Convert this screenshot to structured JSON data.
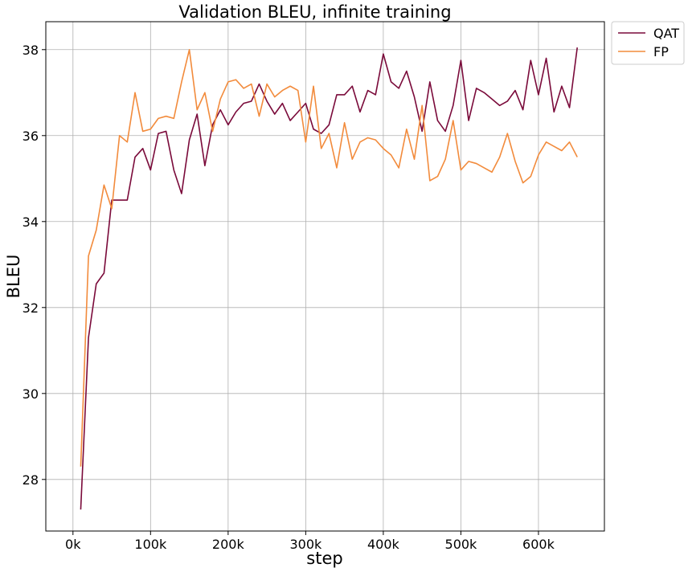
{
  "chart_data": {
    "type": "line",
    "title": "Validation BLEU, infinite training",
    "xlabel": "step",
    "ylabel": "BLEU",
    "xlim": [
      -35000,
      685000
    ],
    "ylim": [
      26.8,
      38.65
    ],
    "xticks": [
      0,
      100000,
      200000,
      300000,
      400000,
      500000,
      600000
    ],
    "xtick_labels": [
      "0k",
      "100k",
      "200k",
      "300k",
      "400k",
      "500k",
      "600k"
    ],
    "yticks": [
      28,
      30,
      32,
      34,
      36,
      38
    ],
    "ytick_labels": [
      "28",
      "30",
      "32",
      "34",
      "36",
      "38"
    ],
    "grid": true,
    "legend_position": "outside top-right",
    "x": [
      10000,
      20000,
      30000,
      40000,
      50000,
      60000,
      70000,
      80000,
      90000,
      100000,
      110000,
      120000,
      130000,
      140000,
      150000,
      160000,
      170000,
      180000,
      190000,
      200000,
      210000,
      220000,
      230000,
      240000,
      250000,
      260000,
      270000,
      280000,
      290000,
      300000,
      310000,
      320000,
      330000,
      340000,
      350000,
      360000,
      370000,
      380000,
      390000,
      400000,
      410000,
      420000,
      430000,
      440000,
      450000,
      460000,
      470000,
      480000,
      490000,
      500000,
      510000,
      520000,
      530000,
      540000,
      550000,
      560000,
      570000,
      580000,
      590000,
      600000,
      610000,
      620000,
      630000,
      640000,
      650000
    ],
    "series": [
      {
        "name": "QAT",
        "color": "#7a0a3a",
        "values": [
          27.3,
          31.3,
          32.55,
          32.8,
          34.5,
          34.5,
          34.5,
          35.5,
          35.7,
          35.2,
          36.05,
          36.1,
          35.2,
          34.65,
          35.9,
          36.5,
          35.3,
          36.25,
          36.6,
          36.25,
          36.55,
          36.75,
          36.8,
          37.2,
          36.8,
          36.5,
          36.75,
          36.35,
          36.55,
          36.75,
          36.15,
          36.05,
          36.25,
          36.95,
          36.95,
          37.15,
          36.55,
          37.05,
          36.95,
          37.9,
          37.25,
          37.1,
          37.5,
          36.9,
          36.1,
          37.25,
          36.35,
          36.1,
          36.7,
          37.75,
          36.35,
          37.1,
          37.0,
          36.85,
          36.7,
          36.8,
          37.05,
          36.6,
          37.75,
          36.95,
          37.8,
          36.55,
          37.15,
          36.65,
          38.05
        ]
      },
      {
        "name": "FP",
        "color": "#f28b3c",
        "values": [
          28.3,
          33.2,
          33.8,
          34.85,
          34.3,
          36.0,
          35.85,
          37.0,
          36.1,
          36.15,
          36.4,
          36.45,
          36.4,
          37.25,
          38.0,
          36.6,
          37.0,
          36.1,
          36.85,
          37.25,
          37.3,
          37.1,
          37.2,
          36.45,
          37.2,
          36.9,
          37.05,
          37.15,
          37.05,
          35.85,
          37.15,
          35.7,
          36.05,
          35.25,
          36.3,
          35.45,
          35.85,
          35.95,
          35.9,
          35.7,
          35.55,
          35.25,
          36.15,
          35.45,
          36.7,
          34.95,
          35.05,
          35.45,
          36.35,
          35.2,
          35.4,
          35.35,
          35.25,
          35.15,
          35.5,
          36.05,
          35.4,
          34.9,
          35.05,
          35.55,
          35.85,
          35.75,
          35.65,
          35.85,
          35.5
        ]
      }
    ]
  }
}
